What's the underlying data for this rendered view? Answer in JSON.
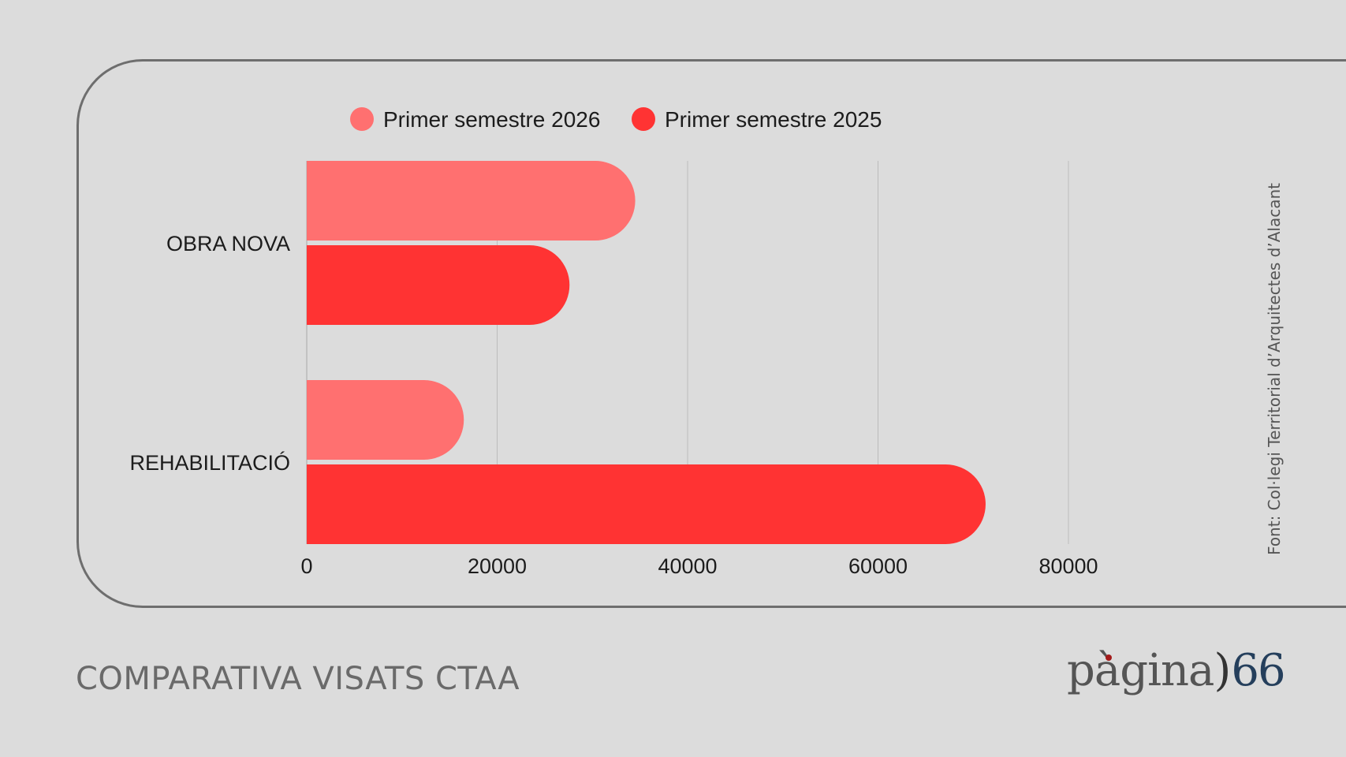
{
  "footer": {
    "title": "COMPARATIVA VISATS CTAA"
  },
  "source_note": "Font: Col·legi Territorial d’Arquitectes d’Alacant",
  "brand": {
    "logo_text": "pàgina)66"
  },
  "colors": {
    "series_2026": "#ff7070",
    "series_2025": "#ff3333",
    "background": "#dcdcdc",
    "panel_border": "#6e6e6e",
    "gridline": "#bcbcbc",
    "brand_number": "#253f5c"
  },
  "chart_data": {
    "type": "bar",
    "orientation": "horizontal",
    "categories": [
      "OBRA NOVA",
      "REHABILITACIÓ"
    ],
    "series": [
      {
        "name": "Primer semestre 2026",
        "values": [
          34500,
          16500
        ]
      },
      {
        "name": "Primer semestre 2025",
        "values": [
          27600,
          71300
        ]
      }
    ],
    "x_ticks": [
      "0",
      "20000",
      "40000",
      "60000",
      "80000"
    ],
    "xlim": [
      0,
      80000
    ],
    "grid": "vertical",
    "legend": "top"
  }
}
